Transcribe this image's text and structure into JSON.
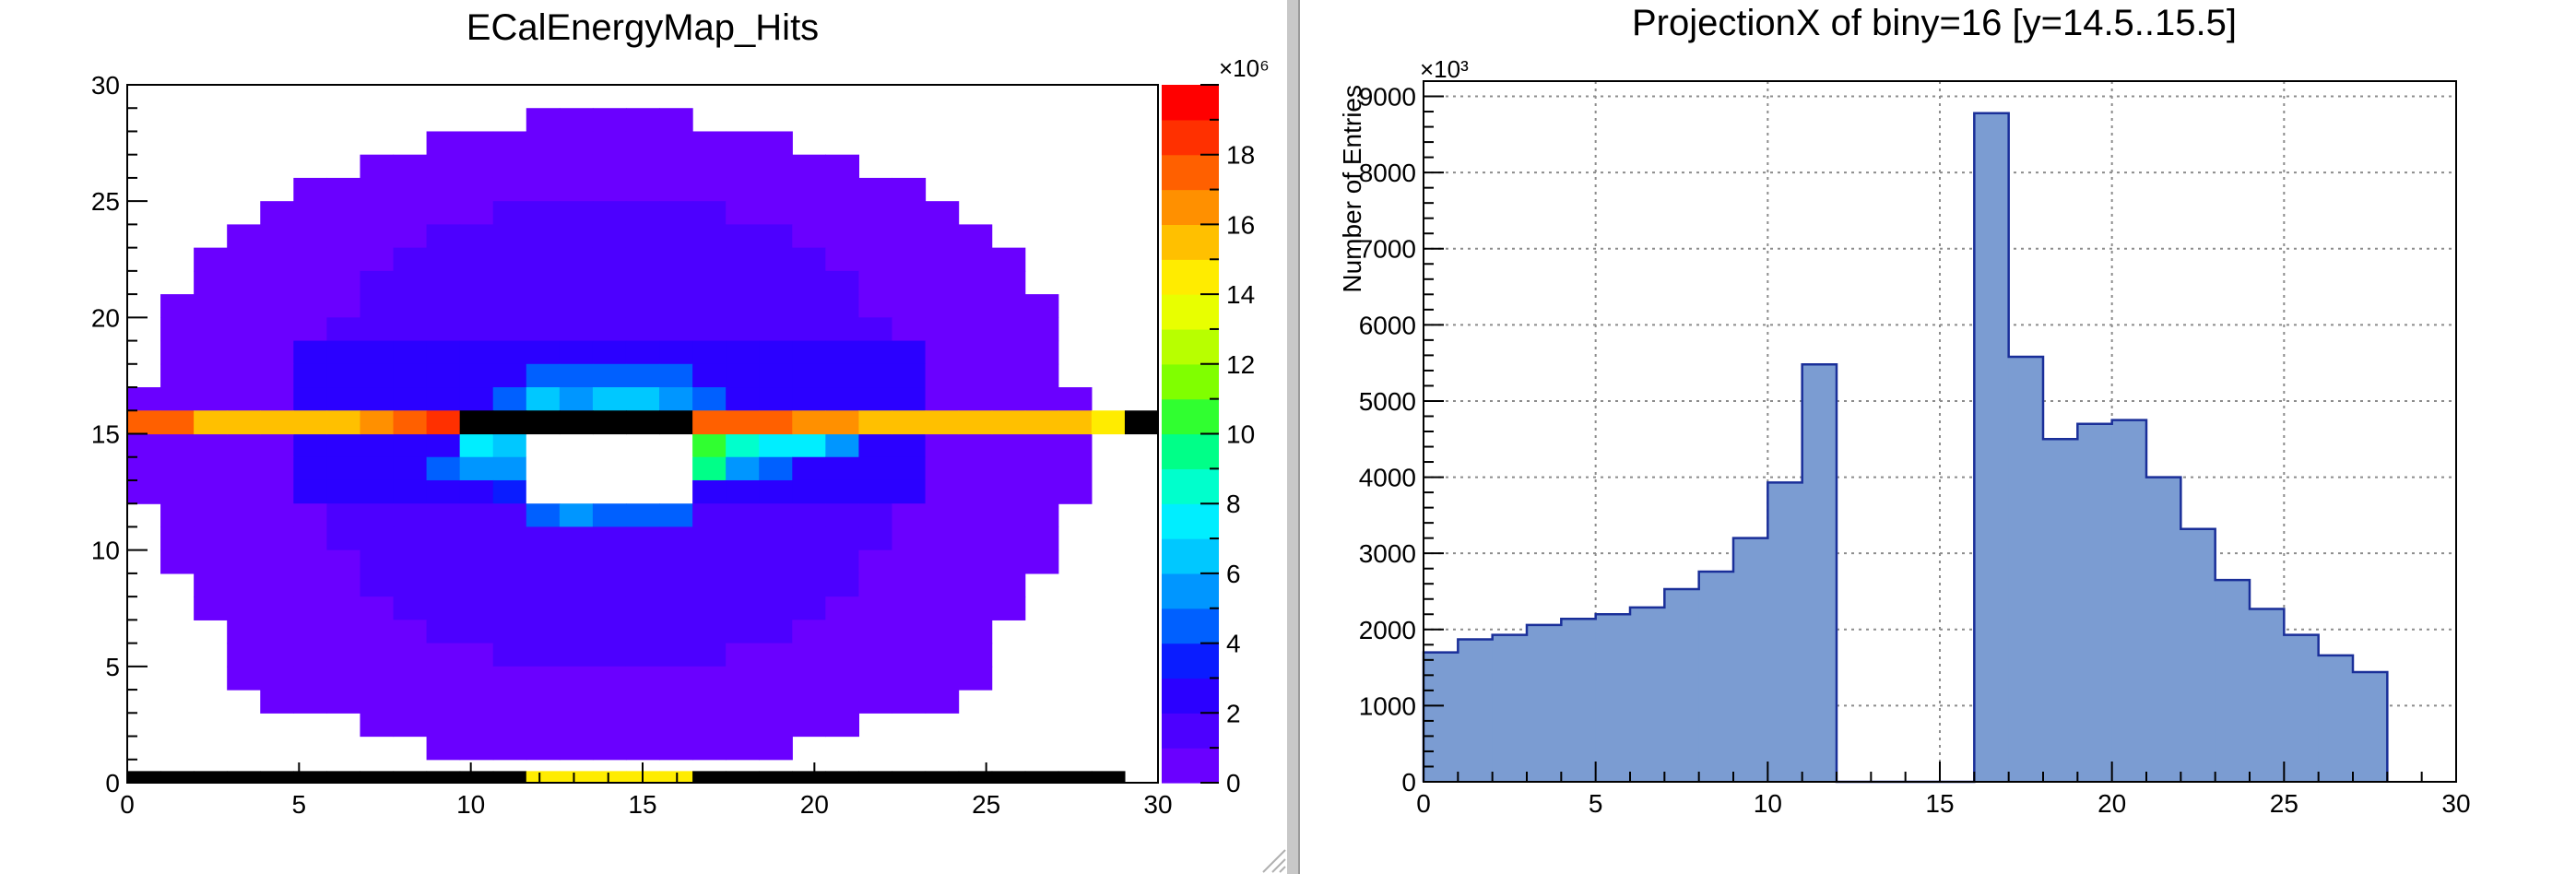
{
  "colors": {
    "window_background": "#ffffff",
    "separator": "#c8c8c8",
    "hist_fill": "#7b9cd2",
    "hist_line": "#1a2f99",
    "grid": "#8c8c8c",
    "empty_bin": "#ffffff",
    "black_bin": "#000000"
  },
  "chart_data": [
    {
      "type": "heatmap",
      "title": "ECalEnergyMap_Hits",
      "xlim": [
        0,
        30
      ],
      "ylim": [
        0,
        30
      ],
      "x_ticks": [
        "0",
        "5",
        "10",
        "15",
        "20",
        "25",
        "30"
      ],
      "y_ticks": [
        "0",
        "5",
        "10",
        "15",
        "20",
        "25",
        "30"
      ],
      "colorbar": {
        "exponent_label": "×10⁶",
        "range": [
          0,
          20
        ],
        "ticks": [
          "0",
          "2",
          "4",
          "6",
          "8",
          "10",
          "12",
          "14",
          "16",
          "18"
        ],
        "palette": [
          "#6a00ff",
          "#4c00ff",
          "#2b00ff",
          "#0a1cff",
          "#0060ff",
          "#0096ff",
          "#00c8ff",
          "#00eeff",
          "#00ffcc",
          "#00ff88",
          "#30ff30",
          "#80ff00",
          "#b8ff00",
          "#e8ff00",
          "#ffec00",
          "#ffc000",
          "#ff9000",
          "#ff6000",
          "#ff3000",
          "#ff0000"
        ]
      },
      "ellipse": {
        "center_x": 14.5,
        "center_y": 13,
        "half_width": 14.2,
        "half_height": 17
      },
      "row_spans": [
        {
          "y": 28,
          "x_from": 12,
          "x_to": 16
        },
        {
          "y": 27,
          "x_from": 9,
          "x_to": 19
        },
        {
          "y": 26,
          "x_from": 7,
          "x_to": 21
        },
        {
          "y": 25,
          "x_from": 5,
          "x_to": 23
        },
        {
          "y": 24,
          "x_from": 4,
          "x_to": 24
        },
        {
          "y": 23,
          "x_from": 3,
          "x_to": 25
        },
        {
          "y": 22,
          "x_from": 2,
          "x_to": 26
        },
        {
          "y": 21,
          "x_from": 2,
          "x_to": 26
        },
        {
          "y": 20,
          "x_from": 1,
          "x_to": 27
        },
        {
          "y": 19,
          "x_from": 1,
          "x_to": 27
        },
        {
          "y": 18,
          "x_from": 1,
          "x_to": 27
        },
        {
          "y": 17,
          "x_from": 1,
          "x_to": 27
        },
        {
          "y": 16,
          "x_from": 0,
          "x_to": 28
        },
        {
          "y": 14,
          "x_from": 0,
          "x_to": 28
        },
        {
          "y": 13,
          "x_from": 0,
          "x_to": 28
        },
        {
          "y": 12,
          "x_from": 0,
          "x_to": 28
        },
        {
          "y": 11,
          "x_from": 1,
          "x_to": 27
        },
        {
          "y": 10,
          "x_from": 1,
          "x_to": 27
        },
        {
          "y": 9,
          "x_from": 1,
          "x_to": 27
        },
        {
          "y": 8,
          "x_from": 2,
          "x_to": 26
        },
        {
          "y": 7,
          "x_from": 2,
          "x_to": 26
        },
        {
          "y": 6,
          "x_from": 3,
          "x_to": 25
        },
        {
          "y": 5,
          "x_from": 3,
          "x_to": 25
        },
        {
          "y": 4,
          "x_from": 3,
          "x_to": 25
        },
        {
          "y": 3,
          "x_from": 4,
          "x_to": 24
        },
        {
          "y": 2,
          "x_from": 7,
          "x_to": 21
        },
        {
          "y": 1,
          "x_from": 9,
          "x_to": 19
        }
      ],
      "row_15_values": [
        17,
        17,
        17,
        15,
        15,
        15,
        15,
        15,
        15,
        15,
        15,
        16,
        17,
        17,
        18,
        0,
        0,
        0,
        0,
        0,
        0,
        19,
        18,
        18,
        18,
        18,
        17,
        17,
        17,
        17,
        17,
        16,
        16,
        16,
        15,
        15,
        15,
        15,
        15,
        15,
        15,
        15,
        15,
        15,
        14,
        0,
        0
      ],
      "row_0": {
        "black_x_from": 0,
        "black_x_to": 29,
        "hot_x_from": 12,
        "hot_x_to": 16,
        "hot_value": 14
      },
      "hole": {
        "x_from": 12,
        "x_to": 16,
        "y_from": 12,
        "y_to": 16
      },
      "hot_cells": [
        {
          "x": 12,
          "y": 16,
          "v": 6
        },
        {
          "x": 13,
          "y": 16,
          "v": 5
        },
        {
          "x": 14,
          "y": 16,
          "v": 6
        },
        {
          "x": 15,
          "y": 16,
          "v": 6
        },
        {
          "x": 16,
          "y": 16,
          "v": 5
        },
        {
          "x": 12,
          "y": 17,
          "v": 4
        },
        {
          "x": 13,
          "y": 17,
          "v": 4
        },
        {
          "x": 14,
          "y": 17,
          "v": 4
        },
        {
          "x": 15,
          "y": 17,
          "v": 4
        },
        {
          "x": 16,
          "y": 17,
          "v": 4
        },
        {
          "x": 11,
          "y": 16,
          "v": 4
        },
        {
          "x": 17,
          "y": 16,
          "v": 4
        },
        {
          "x": 10,
          "y": 14,
          "v": 7
        },
        {
          "x": 11,
          "y": 14,
          "v": 6
        },
        {
          "x": 17,
          "y": 14,
          "v": 10
        },
        {
          "x": 18,
          "y": 14,
          "v": 8
        },
        {
          "x": 19,
          "y": 14,
          "v": 7
        },
        {
          "x": 20,
          "y": 14,
          "v": 7
        },
        {
          "x": 21,
          "y": 14,
          "v": 5
        },
        {
          "x": 9,
          "y": 13,
          "v": 4
        },
        {
          "x": 10,
          "y": 13,
          "v": 5
        },
        {
          "x": 11,
          "y": 13,
          "v": 5
        },
        {
          "x": 17,
          "y": 13,
          "v": 9
        },
        {
          "x": 18,
          "y": 13,
          "v": 5
        },
        {
          "x": 19,
          "y": 13,
          "v": 4
        },
        {
          "x": 11,
          "y": 12,
          "v": 3
        },
        {
          "x": 12,
          "y": 11,
          "v": 4
        },
        {
          "x": 13,
          "y": 11,
          "v": 5
        },
        {
          "x": 14,
          "y": 11,
          "v": 4
        },
        {
          "x": 15,
          "y": 11,
          "v": 4
        },
        {
          "x": 16,
          "y": 11,
          "v": 4
        }
      ],
      "near_band_rows": [
        12,
        13,
        14,
        16,
        17,
        18
      ],
      "near_band_value": 2,
      "outer_value": 0
    },
    {
      "type": "bar",
      "title": "ProjectionX of biny=16 [y=14.5..15.5]",
      "ylabel": "Number of Entries",
      "y_exponent_label": "×10³",
      "xlim": [
        0,
        30
      ],
      "ylim": [
        0,
        9200
      ],
      "grid": true,
      "x_ticks": [
        "0",
        "5",
        "10",
        "15",
        "20",
        "25",
        "30"
      ],
      "y_ticks": [
        "0",
        "1000",
        "2000",
        "3000",
        "4000",
        "5000",
        "6000",
        "7000",
        "8000",
        "9000"
      ],
      "bin_edges": [
        0,
        1,
        2,
        3,
        4,
        5,
        6,
        7,
        8,
        9,
        10,
        11,
        12,
        13,
        14,
        15,
        16,
        17,
        18,
        19,
        20,
        21,
        22,
        23,
        24,
        25,
        26,
        27,
        28
      ],
      "values": [
        1700,
        1870,
        1930,
        2060,
        2140,
        2200,
        2290,
        2530,
        2760,
        3200,
        3930,
        5480,
        0,
        0,
        0,
        0,
        8780,
        5580,
        4500,
        4700,
        4750,
        4000,
        3320,
        2650,
        2270,
        1930,
        1660,
        1440
      ]
    }
  ]
}
